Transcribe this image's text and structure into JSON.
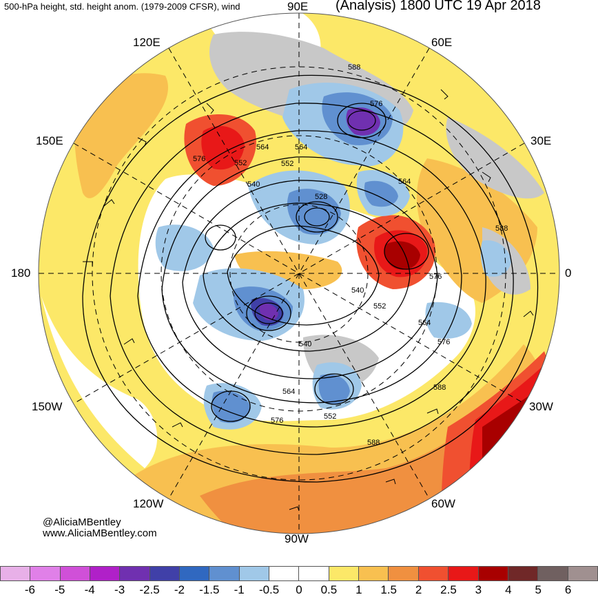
{
  "header": {
    "left_title": "500-hPa height, std. height anom. (1979-2009 CFSR), wind",
    "right_title": "(Analysis) 1800 UTC 19 Apr 2018"
  },
  "longitude_labels": {
    "e90": "90E",
    "e60": "60E",
    "e30": "30E",
    "zero": "0",
    "w30": "30W",
    "w60": "60W",
    "w90": "90W",
    "w120": "120W",
    "w150": "150W",
    "d180": "180",
    "e150": "150E",
    "e120": "120E"
  },
  "contour_labels": [
    "588",
    "576",
    "564",
    "552",
    "540",
    "528",
    "564",
    "588",
    "576",
    "540",
    "552",
    "564",
    "576",
    "588",
    "564",
    "552",
    "576",
    "588",
    "540",
    "576",
    "564",
    "552"
  ],
  "credits": {
    "handle": "@AliciaMBentley",
    "website": "www.AliciaMBentley.com"
  },
  "colorbar": {
    "colors": [
      "#e8b0e8",
      "#e080e8",
      "#d050d8",
      "#b020c8",
      "#7030b0",
      "#4040a8",
      "#3068c0",
      "#6090d0",
      "#a0c8e8",
      "#ffffff",
      "#ffffff",
      "#fce868",
      "#f8c050",
      "#f09040",
      "#f05030",
      "#e81818",
      "#a80000",
      "#702828",
      "#706060",
      "#a09090"
    ],
    "ticks": [
      "-6",
      "-5",
      "-4",
      "-3",
      "-2.5",
      "-2",
      "-1.5",
      "-1",
      "-0.5",
      "0",
      "0.5",
      "1",
      "1.5",
      "2",
      "2.5",
      "3",
      "4",
      "5",
      "6"
    ]
  }
}
